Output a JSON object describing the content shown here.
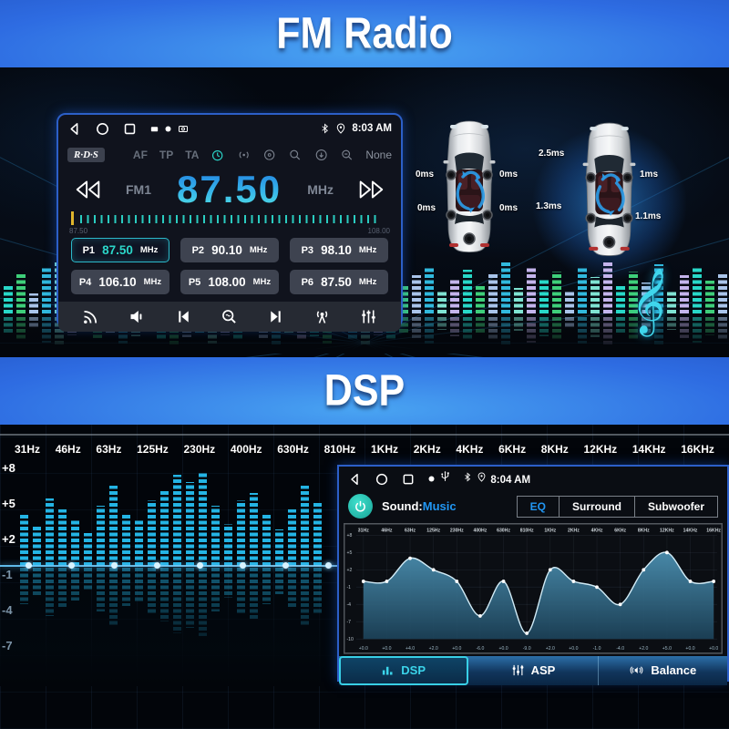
{
  "banners": {
    "fm_title": "FM Radio",
    "dsp_title": "DSP"
  },
  "radio_screen": {
    "status": {
      "time": "8:03 AM"
    },
    "rds": {
      "badge": "R·D·S",
      "af": "AF",
      "tp": "TP",
      "ta": "TA",
      "none": "None"
    },
    "tuner": {
      "band": "FM1",
      "frequency": "87.50",
      "unit": "MHz"
    },
    "scale": {
      "min": "87.50",
      "max": "108.00"
    },
    "presets": [
      {
        "id": "P1",
        "freq": "87.50",
        "unit": "MHz",
        "active": true
      },
      {
        "id": "P2",
        "freq": "90.10",
        "unit": "MHz",
        "active": false
      },
      {
        "id": "P3",
        "freq": "98.10",
        "unit": "MHz",
        "active": false
      },
      {
        "id": "P4",
        "freq": "106.10",
        "unit": "MHz",
        "active": false
      },
      {
        "id": "P5",
        "freq": "108.00",
        "unit": "MHz",
        "active": false
      },
      {
        "id": "P6",
        "freq": "87.50",
        "unit": "MHz",
        "active": false
      }
    ]
  },
  "delay_diagram": {
    "left_car_delays": [
      "0ms",
      "0ms",
      "0ms",
      "0ms"
    ],
    "right_car_delays": [
      "2.5ms",
      "1ms",
      "1.3ms",
      "1.1ms"
    ]
  },
  "dsp_screen": {
    "status": {
      "time": "8:04 AM"
    },
    "sound_label": "Sound:",
    "sound_value": "Music",
    "eq_buttons": [
      "EQ",
      "Surround",
      "Subwoofer"
    ],
    "active_eq_button": "EQ",
    "tabs": [
      {
        "label": "DSP",
        "active": true
      },
      {
        "label": "ASP",
        "active": false
      },
      {
        "label": "Balance",
        "active": false
      }
    ]
  },
  "frequency_labels": [
    "31Hz",
    "46Hz",
    "63Hz",
    "125Hz",
    "230Hz",
    "400Hz",
    "630Hz",
    "810Hz",
    "1KHz",
    "2KHz",
    "4KHz",
    "6KHz",
    "8KHz",
    "12KHz",
    "14KHz",
    "16KHz"
  ],
  "eq_left_axis": [
    "+8",
    "+5",
    "+2",
    "-1",
    "-4",
    "-7"
  ],
  "chart_data": {
    "type": "area",
    "title": "DSP 16-band equalizer curve",
    "x_labels": [
      "31Hz",
      "46Hz",
      "63Hz",
      "125Hz",
      "230Hz",
      "400Hz",
      "630Hz",
      "810Hz",
      "1KHz",
      "2KHz",
      "4KHz",
      "6KHz",
      "8KHz",
      "12KHz",
      "14KHz",
      "16KHz"
    ],
    "values": [
      0,
      0,
      4,
      2,
      0,
      -6,
      0,
      -9,
      2,
      0,
      -1,
      -4,
      2,
      5,
      0,
      0
    ],
    "value_labels": [
      "+0.0",
      "+0.0",
      "+4.0",
      "+2.0",
      "+0.0",
      "-6.0",
      "+0.0",
      "-9.0",
      "+2.0",
      "+0.0",
      "-1.0",
      "-4.0",
      "+2.0",
      "+5.0",
      "+0.0",
      "+0.0"
    ],
    "y_ticks": [
      "+8",
      "+5",
      "+2",
      "-1",
      "-4",
      "-7",
      "-10"
    ],
    "ylim": [
      -10,
      8
    ],
    "grid": true,
    "legend": "none"
  },
  "colors": {
    "accent_cyan": "#2bd6c9",
    "accent_blue": "#2196f3",
    "banner_blue": "#2e6ce2",
    "eq_bar_cyan": "#24b4e4"
  },
  "decor": {
    "music_symbol": "𝄞",
    "fm_eq_bars": [
      30,
      44,
      22,
      50,
      58,
      36,
      20,
      42,
      30,
      52,
      38,
      26,
      46,
      58,
      40,
      30,
      52,
      36,
      46,
      26,
      42,
      56,
      32,
      48,
      38,
      52,
      26,
      44,
      58,
      36,
      48,
      30,
      42,
      52,
      26,
      38,
      48,
      32,
      44,
      56,
      28,
      50,
      38,
      46,
      24,
      52,
      40,
      58,
      30,
      46,
      34,
      54,
      26,
      42,
      50,
      36,
      44
    ],
    "dsp_eq_bars": [
      56,
      44,
      74,
      62,
      50,
      36,
      66,
      88,
      58,
      52,
      72,
      82,
      100,
      92,
      104,
      66,
      46,
      72,
      80,
      56,
      40,
      62,
      88,
      70
    ]
  }
}
